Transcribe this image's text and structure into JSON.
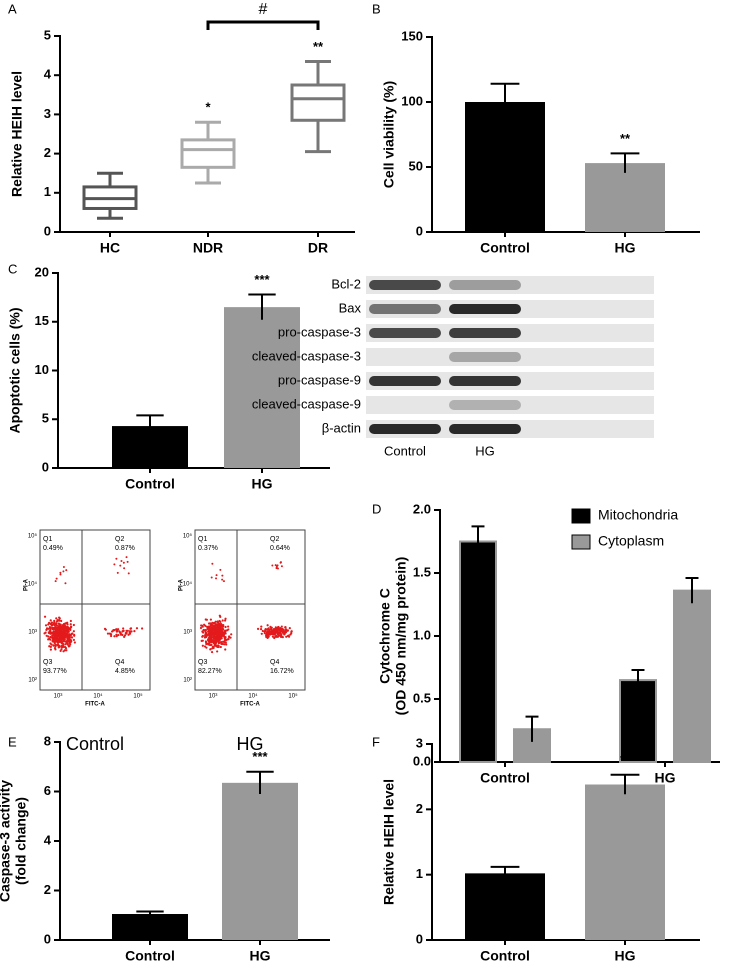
{
  "chart_data": [
    {
      "type": "box",
      "panel": "A",
      "ylabel": [
        "Relative HEIH level"
      ],
      "categories": [
        "HC",
        "NDR",
        "DR"
      ],
      "boxes": [
        {
          "min": 0.35,
          "q1": 0.6,
          "median": 0.85,
          "q3": 1.15,
          "max": 1.5
        },
        {
          "min": 1.25,
          "q1": 1.65,
          "median": 2.1,
          "q3": 2.35,
          "max": 2.8
        },
        {
          "min": 2.05,
          "q1": 2.85,
          "median": 3.4,
          "q3": 3.75,
          "max": 4.35
        }
      ],
      "colors": [
        "#555555",
        "#aaaaaa",
        "#777777"
      ],
      "annotations": [
        null,
        "*",
        "**"
      ],
      "bracket_label": "#",
      "ylim": [
        0,
        5
      ],
      "yticks": [
        0,
        1,
        2,
        3,
        4,
        5
      ]
    },
    {
      "type": "bar",
      "panel": "B",
      "ylabel": [
        "Cell viability (%)"
      ],
      "categories": [
        "Control",
        "HG"
      ],
      "values": [
        100,
        53
      ],
      "errors": [
        14,
        7.5
      ],
      "colors": [
        "#000000",
        "#999999"
      ],
      "annotations": [
        null,
        "**"
      ],
      "ylim": [
        0,
        150
      ],
      "yticks": [
        0,
        50,
        100,
        150
      ]
    },
    {
      "type": "bar",
      "panel": "C",
      "ylabel": [
        "Apoptotic cells (%)"
      ],
      "categories": [
        "Control",
        "HG"
      ],
      "values": [
        4.3,
        16.5
      ],
      "errors": [
        1.1,
        1.3
      ],
      "colors": [
        "#000000",
        "#999999"
      ],
      "annotations": [
        null,
        "***"
      ],
      "ylim": [
        0,
        20
      ],
      "yticks": [
        0,
        5,
        10,
        15,
        20
      ]
    },
    {
      "type": "bar",
      "panel": "D",
      "ylabel": [
        "Cytochrome C",
        "(OD 450 nm/mg protein)"
      ],
      "categories": [
        "Control",
        "HG"
      ],
      "series": [
        {
          "name": "Mitochondria",
          "color": "#000000",
          "values": [
            1.75,
            0.65
          ],
          "errors": [
            0.12,
            0.08
          ]
        },
        {
          "name": "Cytoplasm",
          "color": "#999999",
          "values": [
            0.26,
            1.36
          ],
          "errors": [
            0.1,
            0.1
          ]
        }
      ],
      "edgecolor": "#999999",
      "legend": "top-right",
      "ylim": [
        0,
        2
      ],
      "yticks": [
        {
          "value": 0,
          "label": "0.0"
        },
        0.5,
        {
          "value": 1,
          "label": "1.0"
        },
        1.5,
        {
          "value": 2,
          "label": "2.0"
        }
      ]
    },
    {
      "type": "bar",
      "panel": "E",
      "ylabel": [
        "Caspase-3 activity",
        "(fold change)"
      ],
      "categories": [
        "Control",
        "HG"
      ],
      "values": [
        1.05,
        6.35
      ],
      "errors": [
        0.1,
        0.45
      ],
      "colors": [
        "#000000",
        "#999999"
      ],
      "annotations": [
        null,
        "***"
      ],
      "ylim": [
        0,
        8
      ],
      "yticks": [
        0,
        2,
        4,
        6,
        8
      ]
    },
    {
      "type": "bar",
      "panel": "F",
      "ylabel": [
        "Relative HEIH level"
      ],
      "categories": [
        "Control",
        "HG"
      ],
      "values": [
        1.02,
        2.38
      ],
      "errors": [
        0.1,
        0.15
      ],
      "colors": [
        "#000000",
        "#999999"
      ],
      "annotations": [
        null,
        "**"
      ],
      "ylim": [
        0,
        3
      ],
      "yticks": [
        0,
        1,
        2,
        3
      ]
    }
  ],
  "blot": {
    "proteins": [
      "Bcl-2",
      "Bax",
      "pro-caspase-3",
      "cleaved-caspase-3",
      "pro-caspase-9",
      "cleaved-caspase-9",
      "β-actin"
    ],
    "lanes": [
      "Control",
      "HG"
    ]
  },
  "flow": {
    "x_label": "FITC-A",
    "y_label": "PI-A",
    "xticks": [
      "10³",
      "10⁴",
      "10⁵"
    ],
    "yticks": [
      "10⁵",
      "10⁴",
      "10³",
      "10²"
    ],
    "plots": [
      {
        "caption": "Control",
        "quadrants": [
          {
            "name": "Q1",
            "percent": "0.49%"
          },
          {
            "name": "Q2",
            "percent": "0.87%"
          },
          {
            "name": "Q3",
            "percent": "93.77%"
          },
          {
            "name": "Q4",
            "percent": "4.85%"
          }
        ]
      },
      {
        "caption": "HG",
        "quadrants": [
          {
            "name": "Q1",
            "percent": "0.37%"
          },
          {
            "name": "Q2",
            "percent": "0.64%"
          },
          {
            "name": "Q3",
            "percent": "82.27%"
          },
          {
            "name": "Q4",
            "percent": "16.72%"
          }
        ]
      }
    ]
  }
}
